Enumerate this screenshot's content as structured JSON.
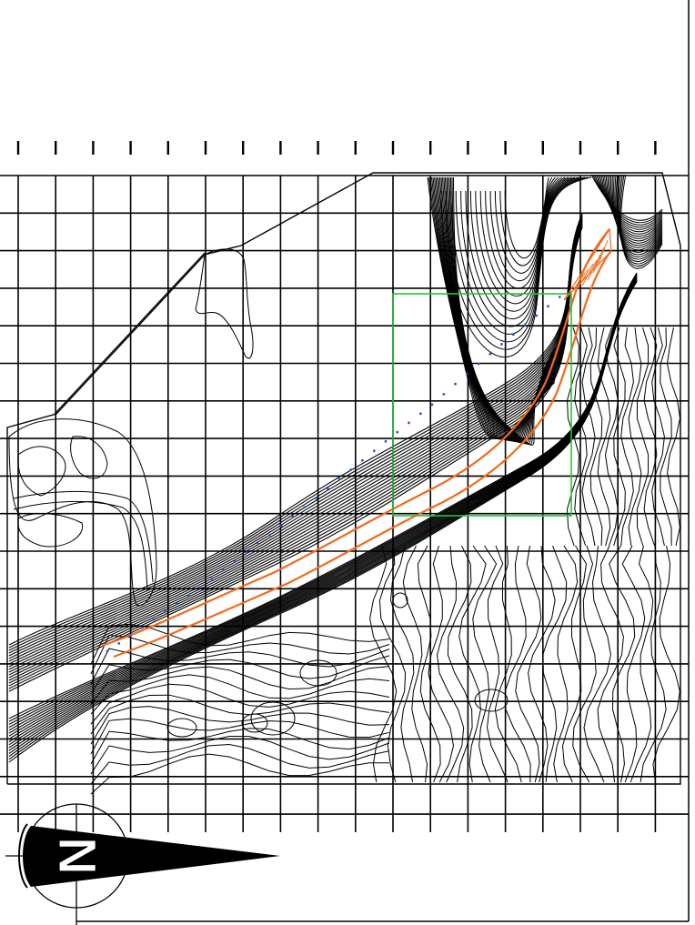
{
  "map": {
    "type": "topographic-contour-plan",
    "grid": {
      "shown": true,
      "tick_marks": true
    },
    "colors": {
      "background": "#ffffff",
      "contour": "#000000",
      "grid": "#000000",
      "channel_alignment": "#f26a1b",
      "survey_points": "#2a57c9",
      "detail_frame": "#2ebd3a"
    },
    "north_arrow": {
      "letter": "N",
      "icon": "north-arrow-icon"
    }
  }
}
